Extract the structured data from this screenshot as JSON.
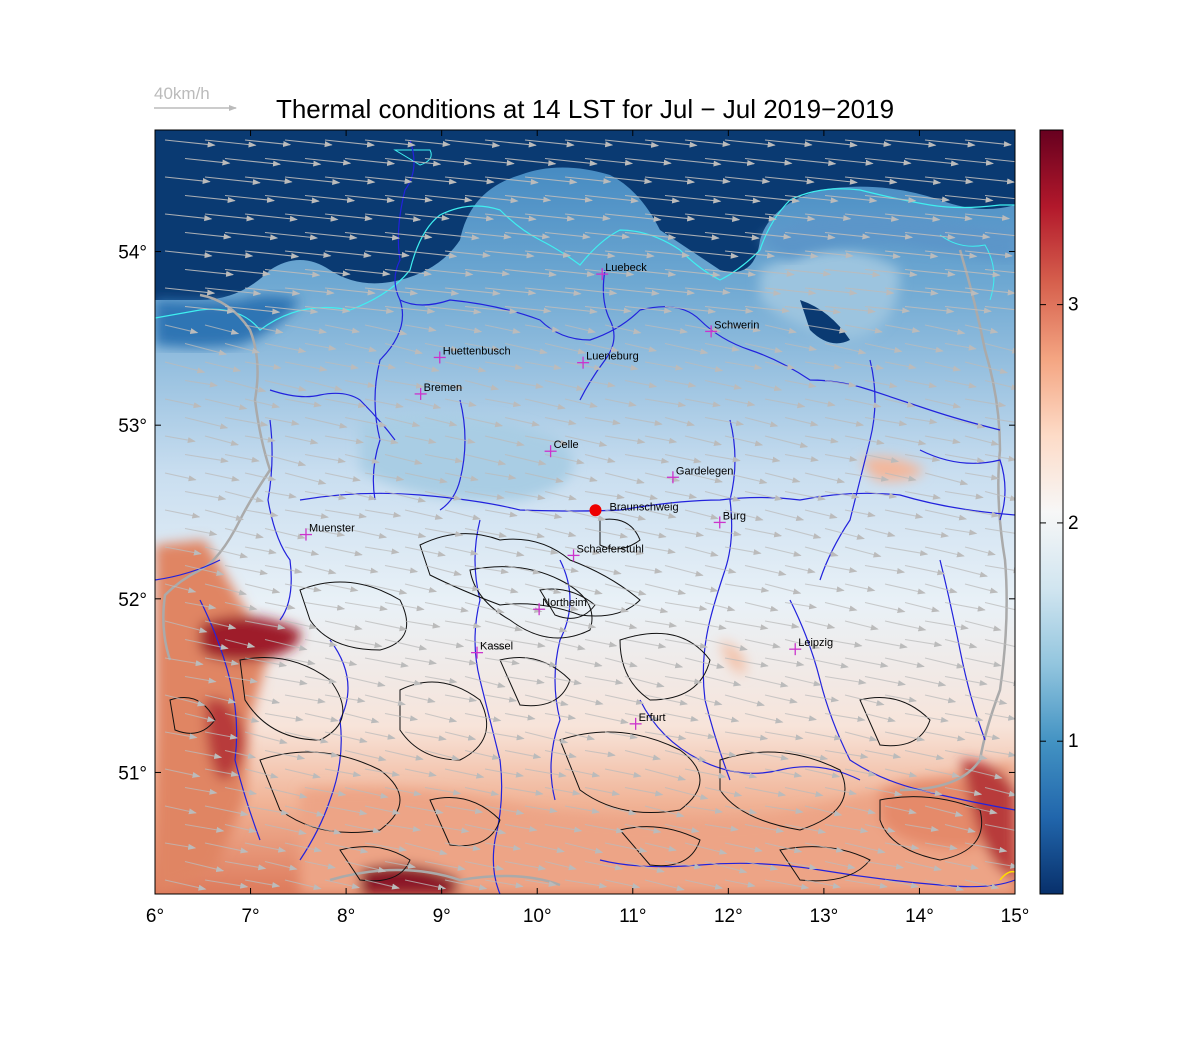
{
  "title": "Thermal conditions at 14 LST for Jul − Jul  2019−2019",
  "reference_vector": {
    "label": "40km/h",
    "color": "#bbbbbb"
  },
  "chart_data": {
    "type": "heatmap",
    "title": "Thermal conditions at 14 LST for Jul − Jul  2019−2019",
    "xlim": [
      6,
      15
    ],
    "ylim": [
      50.3,
      54.7
    ],
    "x_ticks": [
      6,
      7,
      8,
      9,
      10,
      11,
      12,
      13,
      14,
      15
    ],
    "x_tick_labels": [
      "6°",
      "7°",
      "8°",
      "9°",
      "10°",
      "11°",
      "12°",
      "13°",
      "14°",
      "15°"
    ],
    "y_ticks": [
      51,
      52,
      53,
      54
    ],
    "y_tick_labels": [
      "51°",
      "52°",
      "53°",
      "54°"
    ],
    "colorbar": {
      "range": [
        0.3,
        3.8
      ],
      "ticks": [
        1,
        2,
        3
      ],
      "tick_labels": [
        "1",
        "2",
        "3"
      ],
      "colors": [
        "#08306b",
        "#2166ac",
        "#4393c3",
        "#92c5de",
        "#d1e5f0",
        "#f7f7f7",
        "#fddbc7",
        "#f4a582",
        "#d6604d",
        "#b2182b",
        "#67001f"
      ]
    },
    "wind": {
      "direction": "from west-northwest",
      "arrow_color": "#bbbbbb"
    },
    "cities": [
      {
        "name": "Luebeck",
        "lon": 10.68,
        "lat": 53.87
      },
      {
        "name": "Schwerin",
        "lon": 11.82,
        "lat": 53.54
      },
      {
        "name": "Huettenbusch",
        "lon": 8.98,
        "lat": 53.39
      },
      {
        "name": "Lueneburg",
        "lon": 10.48,
        "lat": 53.36
      },
      {
        "name": "Bremen",
        "lon": 8.78,
        "lat": 53.18
      },
      {
        "name": "Celle",
        "lon": 10.14,
        "lat": 52.85
      },
      {
        "name": "Gardelegen",
        "lon": 11.42,
        "lat": 52.7
      },
      {
        "name": "Braunschweig",
        "lon": 10.61,
        "lat": 52.51,
        "marker": "dot",
        "color": "#ee0000"
      },
      {
        "name": "Burg",
        "lon": 11.91,
        "lat": 52.44
      },
      {
        "name": "Muenster",
        "lon": 7.58,
        "lat": 52.37
      },
      {
        "name": "Schaeferstuhl",
        "lon": 10.38,
        "lat": 52.25
      },
      {
        "name": "Northeim",
        "lon": 10.02,
        "lat": 51.94
      },
      {
        "name": "Kassel",
        "lon": 9.37,
        "lat": 51.69
      },
      {
        "name": "Leipzig",
        "lon": 12.7,
        "lat": 51.71
      },
      {
        "name": "Erfurt",
        "lon": 11.03,
        "lat": 51.28
      }
    ],
    "marker_color": "#cc33cc"
  }
}
